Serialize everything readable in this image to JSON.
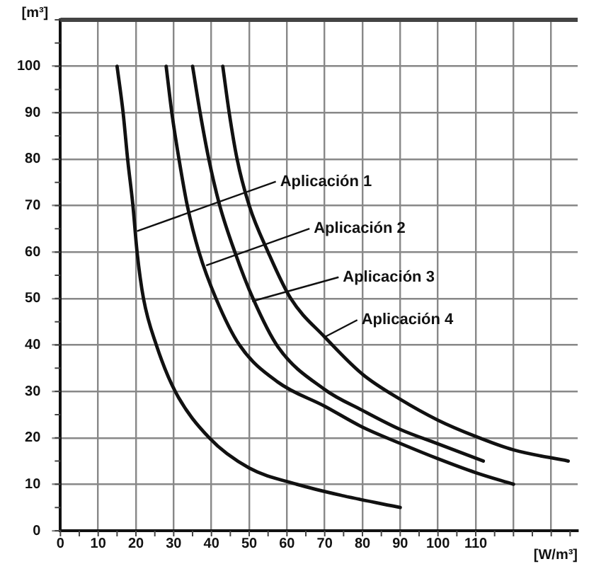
{
  "chart_data": {
    "type": "line",
    "xlabel": "[W/m³]",
    "ylabel": "[m³]",
    "xlim": [
      0,
      137
    ],
    "ylim": [
      0,
      110
    ],
    "xticks": [
      0,
      10,
      20,
      30,
      40,
      50,
      60,
      70,
      80,
      90,
      100,
      110,
      {
        "value": 120,
        "label": null
      },
      {
        "value": 130,
        "label": null
      }
    ],
    "yticks": [
      0,
      10,
      20,
      30,
      40,
      50,
      60,
      70,
      80,
      90,
      100
    ],
    "grid": true,
    "legend": false,
    "marker": "none",
    "line_style": "solid",
    "series": [
      {
        "color": "#111111",
        "x": [
          15,
          16.6,
          17.8,
          19.2,
          20.3,
          22,
          25.4,
          30.4,
          39.4,
          50,
          62.6,
          75,
          90
        ],
        "values": [
          100,
          90,
          80,
          70,
          60,
          50,
          40,
          30,
          20,
          13.5,
          10,
          7.5,
          5
        ]
      },
      {
        "color": "#111111",
        "x": [
          28,
          29.5,
          31.4,
          33.6,
          36.7,
          41.2,
          47.4,
          57.6,
          70,
          80,
          90,
          100,
          110,
          120
        ],
        "values": [
          100,
          90,
          80,
          70,
          60,
          50,
          40,
          32,
          26.8,
          22.3,
          18.8,
          15.5,
          12.5,
          10
        ]
      },
      {
        "color": "#111111",
        "x": [
          35,
          37,
          39.3,
          42.2,
          46.2,
          51,
          57.6,
          70,
          80,
          90,
          100,
          112
        ],
        "values": [
          100,
          90,
          80,
          70,
          60,
          50,
          39.6,
          30.4,
          25.9,
          21.8,
          18.7,
          15
        ]
      },
      {
        "color": "#111111",
        "x": [
          43,
          44.7,
          46.8,
          50,
          55,
          61,
          70,
          80,
          90,
          100,
          110,
          120,
          134.5
        ],
        "values": [
          100,
          90,
          80,
          70,
          60,
          50,
          41.7,
          33.7,
          28.3,
          23.8,
          20.3,
          17.4,
          15
        ]
      }
    ],
    "annotations": [
      {
        "text": "Aplicación 1",
        "x": 20.3,
        "y": 64.5
      },
      {
        "text": "Aplicación 2",
        "x": 38.6,
        "y": 57.1
      },
      {
        "text": "Aplicación 3",
        "x": 50.8,
        "y": 49.4
      },
      {
        "text": "Aplicación 4",
        "x": 70,
        "y": 41.7
      }
    ]
  }
}
